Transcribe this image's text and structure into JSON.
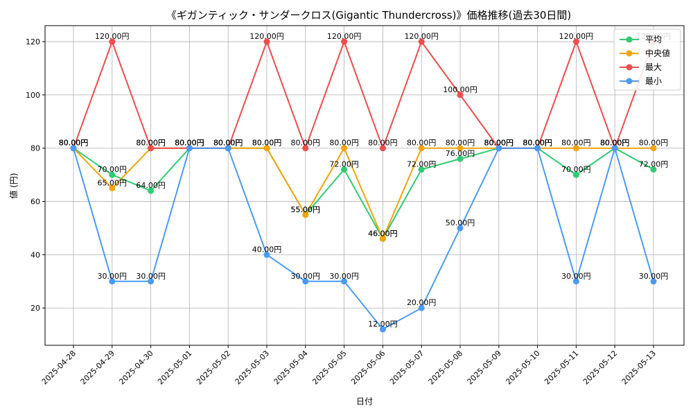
{
  "chart_data": {
    "type": "line",
    "title": "《ギガンティック・サンダークロス(Gigantic Thundercross)》価格推移(過去30日間)",
    "xlabel": "日付",
    "ylabel": "値 (円)",
    "ylim": [
      6,
      126
    ],
    "yticks": [
      20,
      40,
      60,
      80,
      100,
      120
    ],
    "grid": true,
    "legend_position": "top-right",
    "label_suffix": "円",
    "categories": [
      "2025-04-28",
      "2025-04-29",
      "2025-04-30",
      "2025-05-01",
      "2025-05-02",
      "2025-05-03",
      "2025-05-04",
      "2025-05-05",
      "2025-05-06",
      "2025-05-07",
      "2025-05-08",
      "2025-05-09",
      "2025-05-10",
      "2025-05-11",
      "2025-05-12",
      "2025-05-13"
    ],
    "series": [
      {
        "name": "平均",
        "color": "#2ecc71",
        "values": [
          80,
          70,
          64,
          80,
          80,
          80,
          55,
          72,
          46,
          72,
          76,
          80,
          80,
          70,
          80,
          72
        ]
      },
      {
        "name": "中央値",
        "color": "#f5a30a",
        "values": [
          80,
          65,
          80,
          80,
          80,
          80,
          55,
          80,
          46,
          80,
          80,
          80,
          80,
          80,
          80,
          80
        ]
      },
      {
        "name": "最大",
        "color": "#ef4c4c",
        "values": [
          80,
          120,
          80,
          80,
          80,
          120,
          80,
          120,
          80,
          120,
          100,
          80,
          80,
          120,
          80,
          120
        ]
      },
      {
        "name": "最小",
        "color": "#4a9af5",
        "values": [
          80,
          30,
          30,
          80,
          80,
          40,
          30,
          30,
          12,
          20,
          50,
          80,
          80,
          30,
          80,
          30
        ]
      }
    ]
  }
}
